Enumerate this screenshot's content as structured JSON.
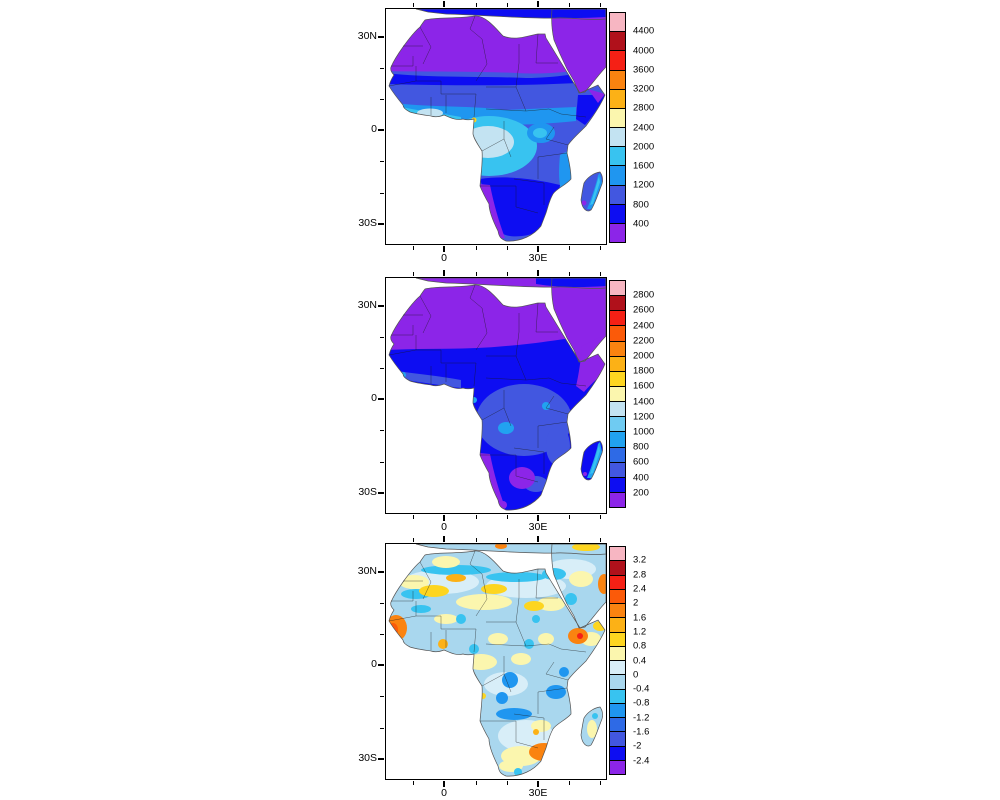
{
  "figure": {
    "background": "#ffffff",
    "description": "Three stacked filled-contour maps of Africa and Arabia with colorbars"
  },
  "palette": {
    "pink": "#f7b6c2",
    "dred": "#b0111b",
    "red": "#f52015",
    "ored": "#fb5a09",
    "orange": "#fa8310",
    "amber": "#fcb116",
    "gold": "#fdd520",
    "pyellow": "#fbf6ae",
    "ppblue": "#d8eef8",
    "pblue": "#c3e3f2",
    "pblue3": "#a9d7ee",
    "lcyan": "#6fcbf2",
    "cyan": "#38c3f0",
    "sblue": "#21a2f0",
    "bblue": "#1f96f0",
    "mblue": "#2e6ae6",
    "royal": "#4257e0",
    "blue": "#0d0df2",
    "purple": "#8c25e8",
    "ocean": "#ffffff",
    "coast": "#555555",
    "border_line": "#1a1a1a"
  },
  "panels": [
    {
      "id": "top",
      "y_tick_labels": [
        "30N",
        "0",
        "30S"
      ],
      "x_tick_labels": [
        "0",
        "30E"
      ],
      "colorbar": {
        "tick_labels": [
          "4400",
          "4000",
          "3600",
          "3200",
          "2800",
          "2400",
          "2000",
          "1600",
          "1200",
          "800",
          "400"
        ],
        "colors": [
          "#f7b6c2",
          "#b0111b",
          "#f52015",
          "#fa8310",
          "#fcb116",
          "#fbf6ae",
          "#c3e3f2",
          "#38c3f0",
          "#1f96f0",
          "#4257e0",
          "#0d0df2",
          "#8c25e8"
        ]
      }
    },
    {
      "id": "middle",
      "y_tick_labels": [
        "30N",
        "0",
        "30S"
      ],
      "x_tick_labels": [
        "0",
        "30E"
      ],
      "colorbar": {
        "tick_labels": [
          "2800",
          "2600",
          "2400",
          "2200",
          "2000",
          "1800",
          "1600",
          "1400",
          "1200",
          "1000",
          "800",
          "600",
          "400",
          "200"
        ],
        "colors": [
          "#f7b6c2",
          "#b0111b",
          "#f52015",
          "#fb5a09",
          "#fa8310",
          "#fcb116",
          "#fdd520",
          "#fbf6ae",
          "#c3e3f2",
          "#6fcbf2",
          "#21a2f0",
          "#2e6ae6",
          "#4257e0",
          "#0d0df2",
          "#8c25e8"
        ]
      }
    },
    {
      "id": "bottom",
      "y_tick_labels": [
        "30N",
        "0",
        "30S"
      ],
      "x_tick_labels": [
        "0",
        "30E"
      ],
      "colorbar": {
        "tick_labels": [
          "3.2",
          "2.8",
          "2.4",
          "2",
          "1.6",
          "1.2",
          "0.8",
          "0.4",
          "0",
          "-0.4",
          "-0.8",
          "-1.2",
          "-1.6",
          "-2",
          "-2.4"
        ],
        "colors": [
          "#f7b6c2",
          "#b0111b",
          "#f52015",
          "#fb5a09",
          "#fa8310",
          "#fcb116",
          "#fdd520",
          "#fbf6ae",
          "#d8eef8",
          "#a9d7ee",
          "#38c3f0",
          "#1f96f0",
          "#2e6ae6",
          "#4257e0",
          "#0d0df2",
          "#8c25e8"
        ]
      }
    }
  ],
  "chart_data": [
    {
      "type": "heatmap",
      "subtype": "filled_contour_map",
      "region": "Africa, Arabia and Madagascar",
      "x_tick_labels": [
        "0",
        "30E"
      ],
      "y_tick_labels": [
        "30N",
        "0",
        "30S"
      ],
      "lon_range_est": [
        -18.5,
        52
      ],
      "lat_range_est": [
        -36,
        39
      ],
      "contour_levels": [
        400,
        800,
        1200,
        1600,
        2000,
        2400,
        2800,
        3200,
        3600,
        4000,
        4400
      ],
      "palette_high_to_low": [
        "#f7b6c2",
        "#b0111b",
        "#f52015",
        "#fa8310",
        "#fcb116",
        "#fbf6ae",
        "#c3e3f2",
        "#38c3f0",
        "#1f96f0",
        "#4257e0",
        "#0d0df2",
        "#8c25e8"
      ],
      "notable_features": [
        "Sahara and Arabia below 400 (purple)",
        "Sahel band 400-800 (dark blue)",
        "Guinea coast and Congo basin 1600-2400 (cyan to pale blue)",
        "Small maximum above 2400 near Mount Cameroon (yellow spot)",
        "Namib coast below 400 (purple), southern interior 400-800",
        "Madagascar east coast 1200-2000"
      ]
    },
    {
      "type": "heatmap",
      "subtype": "filled_contour_map",
      "region": "Africa, Arabia and Madagascar",
      "x_tick_labels": [
        "0",
        "30E"
      ],
      "y_tick_labels": [
        "30N",
        "0",
        "30S"
      ],
      "lon_range_est": [
        -18.5,
        52
      ],
      "lat_range_est": [
        -36,
        39
      ],
      "contour_levels": [
        200,
        400,
        600,
        800,
        1000,
        1200,
        1400,
        1600,
        1800,
        2000,
        2200,
        2400,
        2600,
        2800
      ],
      "palette_high_to_low": [
        "#f7b6c2",
        "#b0111b",
        "#f52015",
        "#fb5a09",
        "#fa8310",
        "#fcb116",
        "#fdd520",
        "#fbf6ae",
        "#c3e3f2",
        "#6fcbf2",
        "#21a2f0",
        "#2e6ae6",
        "#4257e0",
        "#0d0df2",
        "#8c25e8"
      ],
      "notable_features": [
        "Sahara, Arabia and Horn of Africa below 200 (purple)",
        "Most of sub-Saharan Africa 200-400 (dark blue)",
        "Congo basin and East Africa 400-600 (royal blue) with 600-800 spots",
        "Kalahari and Namib patches below 200 (purple)",
        "Madagascar east coast 600-1000"
      ]
    },
    {
      "type": "heatmap",
      "subtype": "filled_contour_difference_map",
      "region": "Africa, Arabia and Madagascar",
      "x_tick_labels": [
        "0",
        "30E"
      ],
      "y_tick_labels": [
        "30N",
        "0",
        "30S"
      ],
      "lon_range_est": [
        -18.5,
        52
      ],
      "lat_range_est": [
        -36,
        39
      ],
      "contour_levels": [
        -2.4,
        -2,
        -1.6,
        -1.2,
        -0.8,
        -0.4,
        0,
        0.4,
        0.8,
        1.2,
        1.6,
        2,
        2.4,
        2.8,
        3.2
      ],
      "palette_high_to_low": [
        "#f7b6c2",
        "#b0111b",
        "#f52015",
        "#fb5a09",
        "#fa8310",
        "#fcb116",
        "#fdd520",
        "#fbf6ae",
        "#d8eef8",
        "#a9d7ee",
        "#38c3f0",
        "#1f96f0",
        "#2e6ae6",
        "#4257e0",
        "#0d0df2",
        "#8c25e8"
      ],
      "notable_features": [
        "Mottled pattern of weak positive (yellow/orange) and negative (blue) anomalies",
        "Strong positive anomaly on Senegal coast and over Ethiopia (orange/red)",
        "Positive anomaly over eastern South Africa coast",
        "Pale blue bands across the central Sahara 20-28N",
        "Negative blobs over Congo basin, Tanzania and Zambia"
      ]
    }
  ]
}
